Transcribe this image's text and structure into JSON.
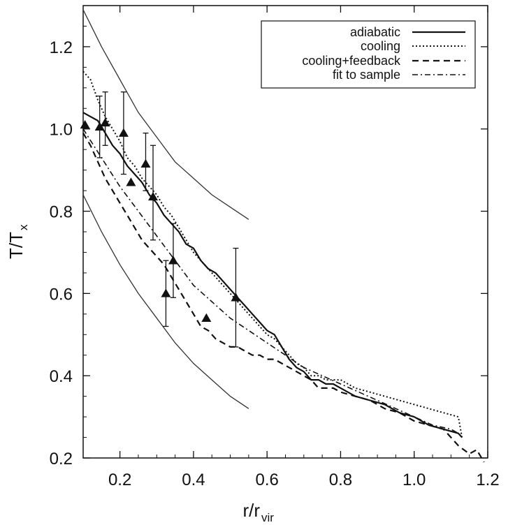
{
  "chart_data": {
    "type": "line",
    "xlabel": {
      "main": "r/r",
      "sub": "vir"
    },
    "ylabel": {
      "main": "T/T",
      "sub": "x"
    },
    "xlim": [
      0.1,
      1.2
    ],
    "ylim": [
      0.2,
      1.3
    ],
    "x_ticks": [
      0.2,
      0.4,
      0.6,
      0.8,
      1.0,
      1.2
    ],
    "x_tick_labels": [
      "0.2",
      "0.4",
      "0.6",
      "0.8",
      "1.0",
      "1.2"
    ],
    "y_ticks": [
      0.2,
      0.4,
      0.6,
      0.8,
      1.0,
      1.2
    ],
    "y_tick_labels": [
      "0.2",
      "0.4",
      "0.6",
      "0.8",
      "1.0",
      "1.2"
    ],
    "grid": false,
    "legend_position": "top-right",
    "series": [
      {
        "name": "adiabatic",
        "style": "solid",
        "x": [
          0.1,
          0.12,
          0.14,
          0.16,
          0.18,
          0.2,
          0.22,
          0.24,
          0.26,
          0.28,
          0.3,
          0.32,
          0.34,
          0.36,
          0.38,
          0.4,
          0.42,
          0.44,
          0.46,
          0.48,
          0.5,
          0.52,
          0.54,
          0.56,
          0.58,
          0.6,
          0.62,
          0.64,
          0.66,
          0.68,
          0.7,
          0.72,
          0.74,
          0.76,
          0.78,
          0.8,
          0.84,
          0.88,
          0.92,
          0.96,
          1.0,
          1.04,
          1.08,
          1.12,
          1.13
        ],
        "y": [
          1.04,
          1.03,
          1.02,
          0.99,
          0.96,
          0.94,
          0.91,
          0.89,
          0.87,
          0.84,
          0.82,
          0.79,
          0.77,
          0.75,
          0.72,
          0.71,
          0.68,
          0.66,
          0.65,
          0.63,
          0.61,
          0.59,
          0.57,
          0.55,
          0.53,
          0.51,
          0.5,
          0.47,
          0.44,
          0.42,
          0.41,
          0.39,
          0.39,
          0.38,
          0.38,
          0.37,
          0.35,
          0.34,
          0.33,
          0.31,
          0.3,
          0.28,
          0.27,
          0.26,
          0.25
        ]
      },
      {
        "name": "cooling",
        "style": "dotted",
        "x": [
          0.1,
          0.12,
          0.14,
          0.16,
          0.18,
          0.2,
          0.22,
          0.24,
          0.26,
          0.28,
          0.3,
          0.32,
          0.34,
          0.36,
          0.38,
          0.4,
          0.42,
          0.44,
          0.46,
          0.48,
          0.5,
          0.52,
          0.54,
          0.56,
          0.58,
          0.6,
          0.62,
          0.64,
          0.66,
          0.68,
          0.7,
          0.72,
          0.74,
          0.76,
          0.78,
          0.8,
          0.84,
          0.88,
          0.92,
          0.96,
          1.0,
          1.04,
          1.08,
          1.12,
          1.13
        ],
        "y": [
          1.14,
          1.12,
          1.07,
          1.03,
          1.0,
          0.97,
          0.93,
          0.91,
          0.88,
          0.86,
          0.84,
          0.81,
          0.79,
          0.76,
          0.73,
          0.7,
          0.68,
          0.66,
          0.64,
          0.62,
          0.6,
          0.58,
          0.56,
          0.54,
          0.52,
          0.5,
          0.49,
          0.47,
          0.45,
          0.43,
          0.42,
          0.4,
          0.4,
          0.39,
          0.39,
          0.39,
          0.37,
          0.36,
          0.35,
          0.34,
          0.33,
          0.32,
          0.31,
          0.3,
          0.25
        ]
      },
      {
        "name": "cooling+feedback",
        "style": "dashed",
        "x": [
          0.1,
          0.12,
          0.14,
          0.16,
          0.18,
          0.2,
          0.22,
          0.24,
          0.26,
          0.28,
          0.3,
          0.32,
          0.34,
          0.36,
          0.38,
          0.4,
          0.42,
          0.44,
          0.46,
          0.48,
          0.5,
          0.52,
          0.54,
          0.56,
          0.58,
          0.6,
          0.62,
          0.64,
          0.66,
          0.68,
          0.7,
          0.72,
          0.74,
          0.76,
          0.78,
          0.8,
          0.84,
          0.88,
          0.92,
          0.96,
          1.0,
          1.04,
          1.08,
          1.12,
          1.15,
          1.17,
          1.19
        ],
        "y": [
          0.99,
          0.96,
          0.92,
          0.88,
          0.85,
          0.82,
          0.79,
          0.76,
          0.73,
          0.71,
          0.69,
          0.67,
          0.64,
          0.61,
          0.58,
          0.55,
          0.52,
          0.51,
          0.49,
          0.48,
          0.47,
          0.47,
          0.46,
          0.45,
          0.45,
          0.44,
          0.44,
          0.43,
          0.42,
          0.41,
          0.4,
          0.39,
          0.37,
          0.37,
          0.37,
          0.36,
          0.35,
          0.34,
          0.32,
          0.31,
          0.29,
          0.28,
          0.27,
          0.23,
          0.21,
          0.22,
          0.19
        ]
      },
      {
        "name": "fit to sample",
        "style": "dashdot",
        "x": [
          0.1,
          0.15,
          0.2,
          0.25,
          0.3,
          0.35,
          0.4,
          0.45,
          0.5,
          0.55,
          0.6,
          0.65,
          0.7,
          0.75,
          0.8,
          0.85,
          0.9,
          0.95,
          1.0,
          1.05,
          1.1,
          1.12
        ],
        "y": [
          1.0,
          0.93,
          0.86,
          0.8,
          0.74,
          0.68,
          0.62,
          0.58,
          0.54,
          0.51,
          0.48,
          0.45,
          0.42,
          0.4,
          0.38,
          0.36,
          0.34,
          0.32,
          0.3,
          0.28,
          0.27,
          0.26
        ]
      }
    ],
    "envelope_curves": [
      {
        "style": "thin-solid",
        "x": [
          0.1,
          0.15,
          0.2,
          0.25,
          0.3,
          0.35,
          0.4,
          0.45,
          0.5,
          0.55
        ],
        "y": [
          1.29,
          1.2,
          1.12,
          1.04,
          0.98,
          0.92,
          0.88,
          0.84,
          0.81,
          0.78
        ]
      },
      {
        "style": "thin-solid",
        "x": [
          0.1,
          0.15,
          0.2,
          0.25,
          0.3,
          0.35,
          0.4,
          0.45,
          0.5,
          0.55
        ],
        "y": [
          0.84,
          0.75,
          0.67,
          0.6,
          0.54,
          0.48,
          0.43,
          0.39,
          0.35,
          0.32
        ]
      }
    ],
    "observed_points": [
      {
        "x": 0.105,
        "y": 1.01,
        "yerr_low": 1.01,
        "yerr_high": 1.01
      },
      {
        "x": 0.145,
        "y": 1.005,
        "yerr_low": 0.93,
        "yerr_high": 1.08
      },
      {
        "x": 0.16,
        "y": 1.015,
        "yerr_low": 0.96,
        "yerr_high": 1.09
      },
      {
        "x": 0.21,
        "y": 0.99,
        "yerr_low": 0.89,
        "yerr_high": 1.09
      },
      {
        "x": 0.23,
        "y": 0.87,
        "yerr_low": 0.87,
        "yerr_high": 0.87
      },
      {
        "x": 0.27,
        "y": 0.915,
        "yerr_low": 0.85,
        "yerr_high": 0.99
      },
      {
        "x": 0.29,
        "y": 0.835,
        "yerr_low": 0.73,
        "yerr_high": 0.96
      },
      {
        "x": 0.325,
        "y": 0.6,
        "yerr_low": 0.52,
        "yerr_high": 0.68
      },
      {
        "x": 0.345,
        "y": 0.68,
        "yerr_low": 0.59,
        "yerr_high": 0.77
      },
      {
        "x": 0.435,
        "y": 0.54,
        "yerr_low": 0.54,
        "yerr_high": 0.54
      },
      {
        "x": 0.515,
        "y": 0.59,
        "yerr_low": 0.47,
        "yerr_high": 0.71
      }
    ]
  }
}
